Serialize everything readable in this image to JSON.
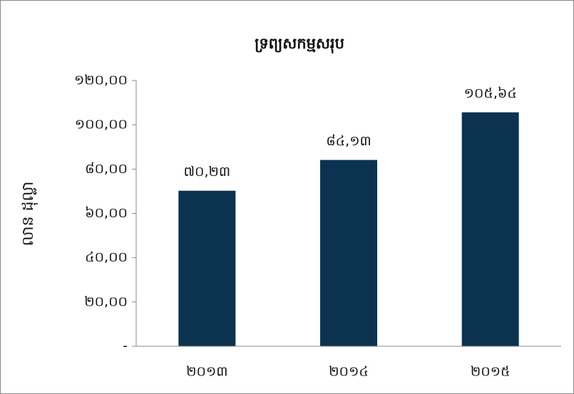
{
  "chart_data": {
    "type": "bar",
    "title": "ទ្រព្យសកម្មសរុប",
    "y_label": "លាន ដុល្លា",
    "categories": [
      "២០១៣",
      "២០១៤",
      "២០១៥"
    ],
    "values": [
      70.23,
      84.13,
      105.64
    ],
    "value_labels": [
      "៧០,២៣",
      "៨៤,១៣",
      "១០៥,៦៤"
    ],
    "color": "#0b3350",
    "ylim": [
      0,
      120
    ],
    "yticks": [
      {
        "value": 0,
        "label": "-"
      },
      {
        "value": 20,
        "label": "២០,០០"
      },
      {
        "value": 40,
        "label": "៤០,០០"
      },
      {
        "value": 60,
        "label": "៦០,០០"
      },
      {
        "value": 80,
        "label": "៨០,០០"
      },
      {
        "value": 100,
        "label": "១០០,០០"
      },
      {
        "value": 120,
        "label": "១២០,០០"
      }
    ],
    "grid": false
  }
}
